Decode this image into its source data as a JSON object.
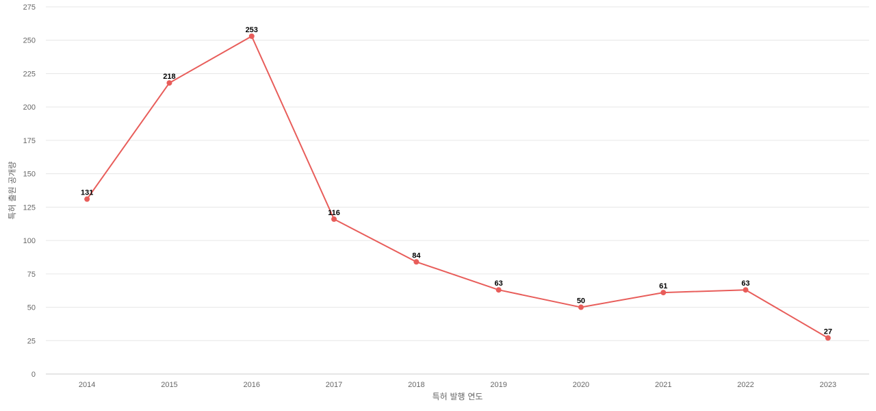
{
  "chart_data": {
    "type": "line",
    "title": "",
    "xlabel": "특허 발행 연도",
    "ylabel": "특허 출원 공개량",
    "categories": [
      "2014",
      "2015",
      "2016",
      "2017",
      "2018",
      "2019",
      "2020",
      "2021",
      "2022",
      "2023"
    ],
    "series": [
      {
        "values": [
          131,
          218,
          253,
          116,
          84,
          63,
          50,
          61,
          63,
          27
        ]
      }
    ],
    "ylim": [
      0,
      275
    ],
    "yticks": [
      0,
      25,
      50,
      75,
      100,
      125,
      150,
      175,
      200,
      225,
      250,
      275
    ],
    "grid": true,
    "legend": "none",
    "line_color": "#e85d5a"
  }
}
